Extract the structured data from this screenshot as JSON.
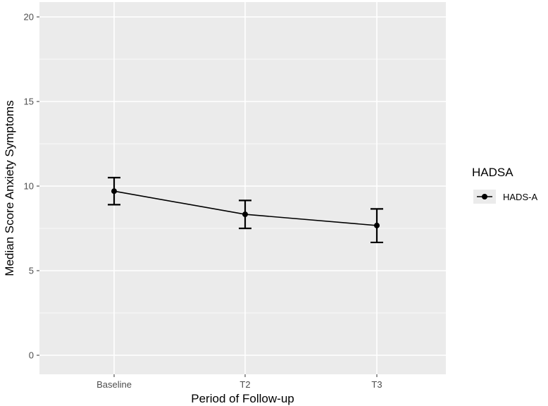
{
  "chart_data": {
    "type": "line",
    "title": "",
    "xlabel": "Period of Follow-up",
    "ylabel": "Median Score Anxiety Symptoms",
    "categories": [
      "Baseline",
      "T2",
      "T3"
    ],
    "ylim": [
      0,
      20
    ],
    "yticks": [
      0,
      5,
      10,
      15,
      20
    ],
    "grid": true,
    "legend": {
      "title": "HADSA",
      "position": "right"
    },
    "series": [
      {
        "name": "HADS-A",
        "values": [
          9.7,
          8.33,
          7.67
        ],
        "error_low": [
          8.9,
          7.5,
          6.67
        ],
        "error_high": [
          10.5,
          9.15,
          8.65
        ],
        "color": "#000000"
      }
    ],
    "panel_background": "#ebebeb",
    "grid_color": "#ffffff"
  }
}
